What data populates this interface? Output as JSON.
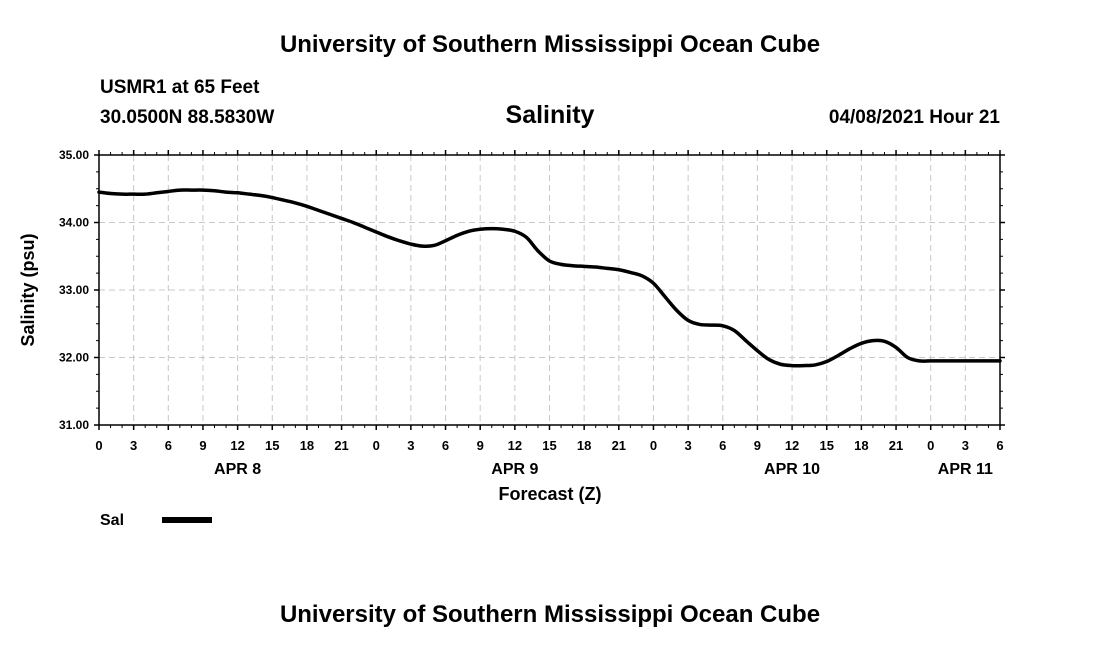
{
  "header": {
    "title_top": "University of Southern Mississippi Ocean Cube",
    "station": "USMR1 at 65 Feet",
    "coords": "30.0500N  88.5830W",
    "subtitle": "Salinity",
    "datetime": "04/08/2021 Hour 21",
    "title_bottom": "University of Southern Mississippi Ocean Cube"
  },
  "legend": {
    "label": "Sal",
    "color": "#000000"
  },
  "chart_data": {
    "type": "line",
    "title": "Salinity",
    "xlabel": "Forecast (Z)",
    "ylabel": "Salinity (psu)",
    "ylim": [
      31.0,
      35.0
    ],
    "xlim_hours": [
      0,
      78
    ],
    "y_ticks": [
      "31.00",
      "32.00",
      "33.00",
      "34.00",
      "35.00"
    ],
    "y_tick_values": [
      31,
      32,
      33,
      34,
      35
    ],
    "x_ticks": [
      "0",
      "3",
      "6",
      "9",
      "12",
      "15",
      "18",
      "21",
      "0",
      "3",
      "6",
      "9",
      "12",
      "15",
      "18",
      "21",
      "0",
      "3",
      "6",
      "9",
      "12",
      "15",
      "18",
      "21",
      "0",
      "3",
      "6"
    ],
    "x_tick_step_hours": 3,
    "date_labels": [
      {
        "label": "APR 8",
        "hour": 12
      },
      {
        "label": "APR 9",
        "hour": 36
      },
      {
        "label": "APR 10",
        "hour": 60
      },
      {
        "label": "APR 11",
        "hour": 75
      }
    ],
    "grid": true,
    "series": [
      {
        "name": "Sal",
        "x_hours": [
          0,
          1,
          2,
          3,
          4,
          5,
          6,
          7,
          8,
          9,
          10,
          11,
          12,
          13,
          14,
          15,
          16,
          17,
          18,
          19,
          20,
          21,
          22,
          23,
          24,
          25,
          26,
          27,
          28,
          29,
          30,
          31,
          32,
          33,
          34,
          35,
          36,
          37,
          38,
          39,
          40,
          41,
          42,
          43,
          44,
          45,
          46,
          47,
          48,
          49,
          50,
          51,
          52,
          53,
          54,
          55,
          56,
          57,
          58,
          59,
          60,
          61,
          62,
          63,
          64,
          65,
          66,
          67,
          68,
          69,
          70,
          71,
          72,
          73,
          74,
          75,
          76,
          77,
          78
        ],
        "values": [
          34.45,
          34.43,
          34.42,
          34.42,
          34.42,
          34.44,
          34.46,
          34.48,
          34.48,
          34.48,
          34.47,
          34.45,
          34.44,
          34.42,
          34.4,
          34.37,
          34.33,
          34.29,
          34.24,
          34.18,
          34.12,
          34.06,
          34.0,
          33.93,
          33.86,
          33.79,
          33.73,
          33.68,
          33.65,
          33.66,
          33.73,
          33.81,
          33.87,
          33.9,
          33.91,
          33.9,
          33.87,
          33.78,
          33.58,
          33.43,
          33.38,
          33.36,
          33.35,
          33.34,
          33.32,
          33.3,
          33.26,
          33.21,
          33.1,
          32.9,
          32.7,
          32.55,
          32.49,
          32.48,
          32.47,
          32.4,
          32.25,
          32.1,
          31.97,
          31.9,
          31.88,
          31.88,
          31.89,
          31.94,
          32.03,
          32.13,
          32.21,
          32.25,
          32.24,
          32.15,
          32.0,
          31.95,
          31.95,
          31.95,
          31.95,
          31.95,
          31.95,
          31.95,
          31.95
        ]
      }
    ]
  }
}
